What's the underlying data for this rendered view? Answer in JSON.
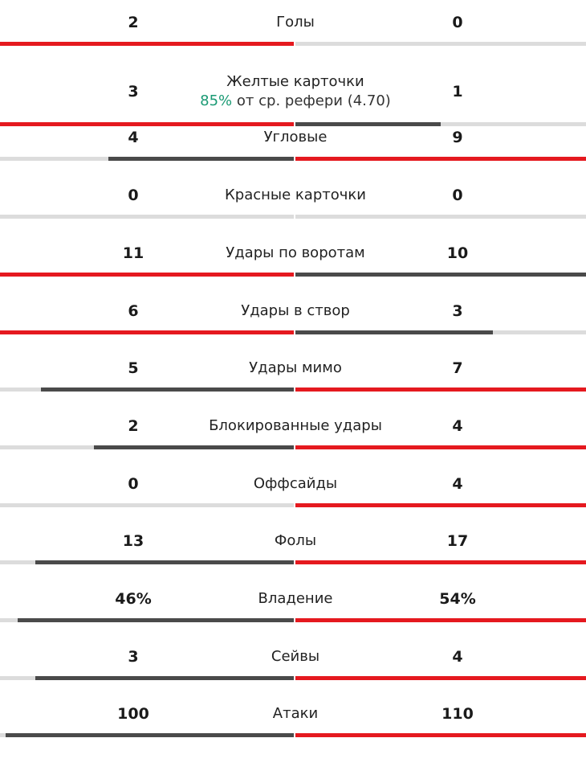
{
  "colors": {
    "leader": "#e5191f",
    "trailer": "#4a4a4a",
    "track": "#dcdcdc",
    "accent": "#1a9a74"
  },
  "stats": [
    {
      "label": "Голы",
      "home": "2",
      "away": "0",
      "home_share": 1.0,
      "away_share": 0.0,
      "leader": "home"
    },
    {
      "label": "Желтые карточки",
      "home": "3",
      "away": "1",
      "home_share": 1.0,
      "away_share": 0.5,
      "leader": "home",
      "sub": {
        "pct": "85%",
        "text": "от ср. рефери (4.70)"
      }
    },
    {
      "label": "Угловые",
      "home": "4",
      "away": "9",
      "home_share": 0.63,
      "away_share": 1.0,
      "leader": "away"
    },
    {
      "label": "Красные карточки",
      "home": "0",
      "away": "0",
      "home_share": 0.0,
      "away_share": 0.0,
      "leader": "none"
    },
    {
      "label": "Удары по воротам",
      "home": "11",
      "away": "10",
      "home_share": 1.0,
      "away_share": 1.0,
      "leader": "home"
    },
    {
      "label": "Удары в створ",
      "home": "6",
      "away": "3",
      "home_share": 1.0,
      "away_share": 0.68,
      "leader": "home"
    },
    {
      "label": "Удары мимо",
      "home": "5",
      "away": "7",
      "home_share": 0.86,
      "away_share": 1.0,
      "leader": "away"
    },
    {
      "label": "Блокированные удары",
      "home": "2",
      "away": "4",
      "home_share": 0.68,
      "away_share": 1.0,
      "leader": "away"
    },
    {
      "label": "Оффсайды",
      "home": "0",
      "away": "4",
      "home_share": 0.0,
      "away_share": 1.0,
      "leader": "away"
    },
    {
      "label": "Фолы",
      "home": "13",
      "away": "17",
      "home_share": 0.88,
      "away_share": 1.0,
      "leader": "away"
    },
    {
      "label": "Владение",
      "home": "46%",
      "away": "54%",
      "home_share": 0.94,
      "away_share": 1.0,
      "leader": "away"
    },
    {
      "label": "Сейвы",
      "home": "3",
      "away": "4",
      "home_share": 0.88,
      "away_share": 1.0,
      "leader": "away"
    },
    {
      "label": "Атаки",
      "home": "100",
      "away": "110",
      "home_share": 0.98,
      "away_share": 1.0,
      "leader": "away"
    }
  ]
}
